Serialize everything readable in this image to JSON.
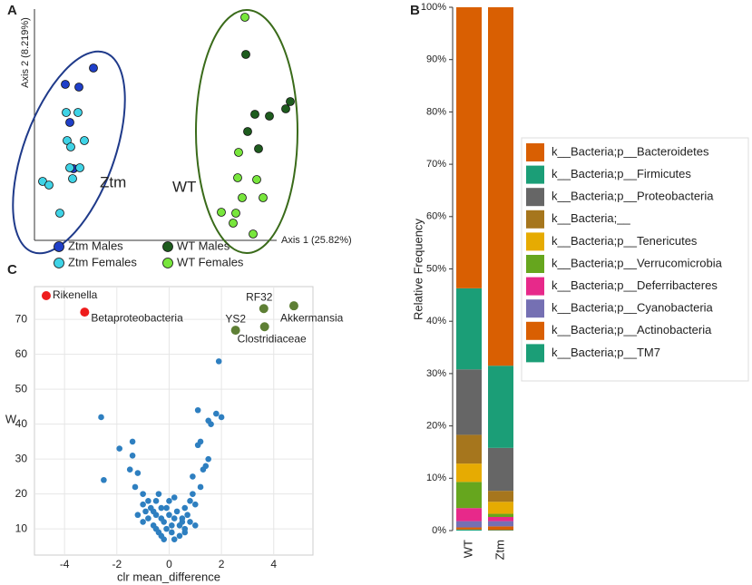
{
  "chart_data": [
    {
      "type": "scatter",
      "panel": "A",
      "xlabel": "Axis 1 (25.82%)",
      "ylabel": "Axis 2 (8.219%)",
      "annotations": [
        "Ztm",
        "WT"
      ],
      "xlim": [
        0,
        300
      ],
      "ylim": [
        0,
        255
      ],
      "series": [
        {
          "name": "Ztm Males",
          "color": "#1f3fc8",
          "x": [
            65,
            34,
            49,
            39,
            43
          ],
          "values": [
            190,
            172,
            169,
            130,
            79
          ]
        },
        {
          "name": "Ztm Females",
          "color": "#3fd3e6",
          "x": [
            35,
            48,
            55,
            36,
            40,
            50,
            39,
            9,
            16,
            42,
            28
          ],
          "values": [
            141,
            141,
            110,
            110,
            103,
            80,
            80,
            65,
            61,
            68,
            30
          ]
        },
        {
          "name": "WT Males",
          "color": "#1e5c1e",
          "x": [
            233,
            282,
            277,
            243,
            259,
            235,
            247
          ],
          "values": [
            205,
            153,
            145,
            139,
            137,
            120,
            101
          ]
        },
        {
          "name": "WT Females",
          "color": "#78e63c",
          "x": [
            232,
            225,
            245,
            224,
            206,
            219,
            241,
            252,
            229,
            222
          ],
          "values": [
            246,
            97,
            67,
            69,
            31,
            19,
            7,
            47,
            47,
            30
          ]
        }
      ]
    },
    {
      "type": "stacked_bar",
      "panel": "B",
      "ylabel": "Relative Frequency",
      "categories": [
        "WT",
        "Ztm"
      ],
      "ylim": [
        0,
        100
      ],
      "yticks": [
        {
          "value": 0,
          "label": "0%"
        },
        {
          "value": 10,
          "label": "10%"
        },
        {
          "value": 20,
          "label": "20%"
        },
        {
          "value": 30,
          "label": "30%"
        },
        {
          "value": 40,
          "label": "40%"
        },
        {
          "value": 50,
          "label": "50%"
        },
        {
          "value": 60,
          "label": "60%"
        },
        {
          "value": 70,
          "label": "70%"
        },
        {
          "value": 80,
          "label": "80%"
        },
        {
          "value": 90,
          "label": "90%"
        },
        {
          "value": 100,
          "label": "100%"
        }
      ],
      "series": [
        {
          "name": "k__Bacteria;p__Bacteroidetes",
          "color": "#d95f02",
          "values": [
            53.7,
            68.5
          ]
        },
        {
          "name": "k__Bacteria;p__Firmicutes",
          "color": "#1b9e77",
          "values": [
            15.5,
            15.7
          ]
        },
        {
          "name": "k__Bacteria;p__Proteobacteria",
          "color": "#666666",
          "values": [
            12.5,
            8.2
          ]
        },
        {
          "name": "k__Bacteria;__",
          "color": "#a6761d",
          "values": [
            5.5,
            2.1
          ]
        },
        {
          "name": "k__Bacteria;p__Tenericutes",
          "color": "#e6ab02",
          "values": [
            3.5,
            2.3
          ]
        },
        {
          "name": "k__Bacteria;p__Verrucomicrobia",
          "color": "#66a61e",
          "values": [
            5,
            0.6
          ]
        },
        {
          "name": "k__Bacteria;p__Deferribacteres",
          "color": "#e7298a",
          "values": [
            2.5,
            0.8
          ]
        },
        {
          "name": "k__Bacteria;p__Cyanobacteria",
          "color": "#7570b3",
          "values": [
            1.2,
            1.0
          ]
        },
        {
          "name": "k__Bacteria;p__Actinobacteria",
          "color": "#d95f02",
          "values": [
            0.4,
            0.7
          ]
        },
        {
          "name": "k__Bacteria;p__TM7",
          "color": "#1b9e77",
          "values": [
            0.2,
            0.1
          ]
        }
      ]
    },
    {
      "type": "scatter",
      "panel": "C",
      "xlabel": "clr mean_difference",
      "ylabel": "W",
      "xlim": [
        -5.15,
        5.5
      ],
      "ylim": [
        2.5,
        79.4
      ],
      "xticks": [
        -4,
        -2,
        0,
        2,
        4
      ],
      "yticks": [
        10,
        20,
        30,
        40,
        50,
        60,
        70
      ],
      "grid": true,
      "series": [
        {
          "color": "#2e7fc0",
          "x": [
            -2.6,
            -2.5,
            -1.9,
            -1.4,
            -1.4,
            -1.2,
            -1.3,
            -1.0,
            -0.8,
            -1.0,
            -0.5,
            -0.3,
            -0.5,
            -0.8,
            -1.0,
            -0.6,
            -0.2,
            0,
            0.2,
            -0.1,
            0.1,
            -0.3,
            0.2,
            -0.2,
            0.4,
            0.6,
            0.5,
            0.3,
            0.6,
            0.8,
            1.0,
            0.9,
            1.2,
            1.3,
            1.5,
            1.1,
            1.2,
            1.6,
            1.5,
            1.1,
            2.0,
            1.8,
            1.9,
            -0.4,
            0,
            -0.6,
            0.7,
            -0.9,
            -0.7,
            0.4,
            -0.4,
            0.8,
            1.0,
            -1.2,
            -0.1,
            0.2,
            0.5,
            -0.3,
            1.4,
            0.6,
            -0.5,
            0.9,
            -1.5,
            0.1
          ],
          "values": [
            42,
            24,
            33,
            35,
            31,
            26,
            22,
            20,
            18,
            17,
            18,
            16,
            14,
            13,
            12,
            11,
            12,
            14,
            13,
            10,
            9,
            8,
            7,
            7,
            8,
            10,
            12,
            15,
            16,
            18,
            17,
            20,
            22,
            27,
            30,
            34,
            35,
            40,
            41,
            44,
            42,
            43,
            58,
            20,
            18,
            15,
            14,
            15,
            16,
            11,
            9,
            12,
            11,
            14,
            16,
            19,
            13,
            13,
            28,
            9,
            10,
            25,
            27,
            11
          ]
        },
        {
          "color": "#ee1c1c",
          "x": [
            -4.7,
            -3.23
          ],
          "values": [
            76.8,
            72.1
          ],
          "labels": [
            "Rikenella",
            "Betaproteobacteria"
          ]
        },
        {
          "color": "#5e7f35",
          "x": [
            2.54,
            3.62,
            4.77,
            3.65
          ],
          "values": [
            66.9,
            73.1,
            73.9,
            67.9
          ],
          "labels": [
            "YS2",
            "RF32",
            "Akkermansia",
            "Clostridiaceae"
          ]
        }
      ]
    }
  ]
}
